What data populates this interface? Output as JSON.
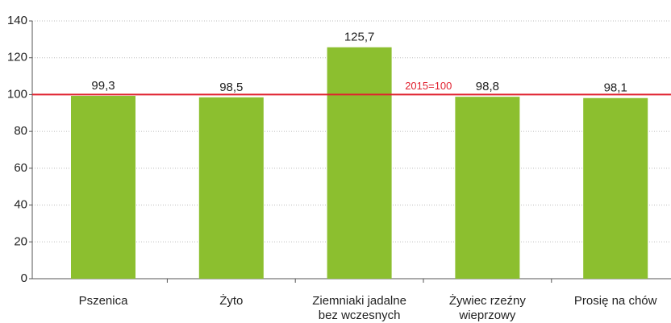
{
  "chart_data": {
    "type": "bar",
    "categories": [
      "Pszenica",
      "Żyto",
      "Ziemniaki jadalne\nbez wczesnych",
      "Żywiec rzeźny\nwieprzowy",
      "Prosię na chów"
    ],
    "values": [
      99.3,
      98.5,
      125.7,
      98.8,
      98.1
    ],
    "value_labels": [
      "99,3",
      "98,5",
      "125,7",
      "98,8",
      "98,1"
    ],
    "color": "#8cbf2f",
    "ylim": [
      0,
      140
    ],
    "yticks": [
      0,
      20,
      40,
      60,
      80,
      100,
      120,
      140
    ],
    "grid": true,
    "reference_line": {
      "value": 100,
      "label": "2015=100",
      "color": "#e0202e"
    }
  }
}
